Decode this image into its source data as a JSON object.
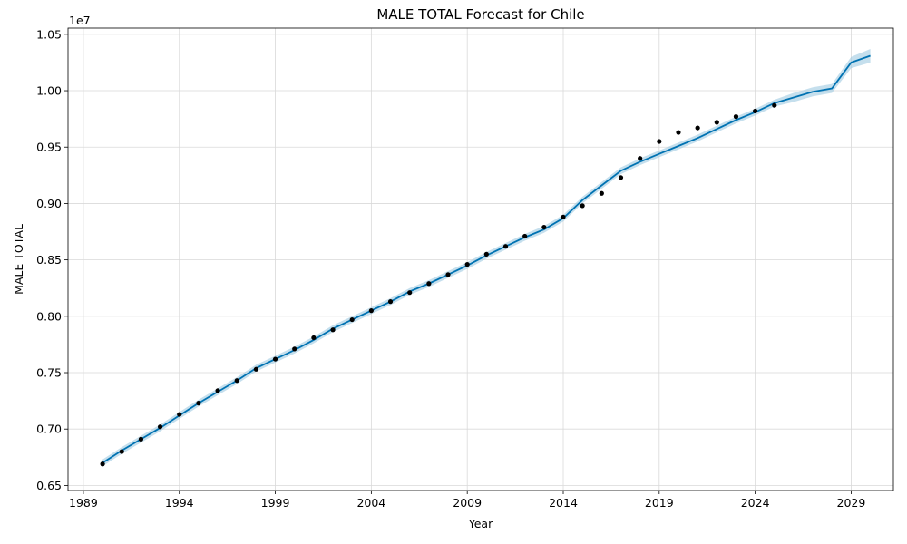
{
  "chart_data": {
    "type": "line",
    "title": "MALE TOTAL Forecast for Chile",
    "xlabel": "Year",
    "ylabel": "MALE TOTAL",
    "y_offset_label": "1e7",
    "y_scale": 10000000,
    "xlim": [
      1988.2,
      2031.2
    ],
    "ylim": [
      6.455,
      10.555
    ],
    "x_ticks": [
      1989,
      1994,
      1999,
      2004,
      2009,
      2014,
      2019,
      2024,
      2029
    ],
    "y_ticks": [
      0.65,
      0.7,
      0.75,
      0.8,
      0.85,
      0.9,
      0.95,
      1.0,
      1.05
    ],
    "y_tick_labels": [
      "0.65",
      "0.70",
      "0.75",
      "0.80",
      "0.85",
      "0.90",
      "0.95",
      "1.00",
      "1.05"
    ],
    "grid": true,
    "line_color": "#0072B2",
    "band_color": "#9ecae1",
    "point_color": "#000000",
    "series": [
      {
        "kind": "observed",
        "x": [
          1990,
          1991,
          1992,
          1993,
          1994,
          1995,
          1996,
          1997,
          1998,
          1999,
          2000,
          2001,
          2002,
          2003,
          2004,
          2005,
          2006,
          2007,
          2008,
          2009,
          2010,
          2011,
          2012,
          2013,
          2014,
          2015,
          2016,
          2017,
          2018,
          2019,
          2020,
          2021,
          2022,
          2023,
          2024,
          2025
        ],
        "y": [
          6.69,
          6.8,
          6.91,
          7.02,
          7.13,
          7.23,
          7.34,
          7.43,
          7.53,
          7.62,
          7.71,
          7.81,
          7.88,
          7.97,
          8.05,
          8.13,
          8.21,
          8.29,
          8.37,
          8.46,
          8.55,
          8.62,
          8.71,
          8.79,
          8.88,
          8.98,
          9.09,
          9.23,
          9.4,
          9.55,
          9.63,
          9.67,
          9.72,
          9.77,
          9.82,
          9.87
        ]
      },
      {
        "kind": "forecast",
        "x": [
          1990,
          1991,
          1992,
          1993,
          1994,
          1995,
          1996,
          1997,
          1998,
          1999,
          2000,
          2001,
          2002,
          2003,
          2004,
          2005,
          2006,
          2007,
          2008,
          2009,
          2010,
          2011,
          2012,
          2013,
          2014,
          2015,
          2016,
          2017,
          2018,
          2019,
          2020,
          2021,
          2022,
          2023,
          2024,
          2025,
          2026,
          2027,
          2028,
          2029,
          2030
        ],
        "y": [
          6.7,
          6.81,
          6.91,
          7.01,
          7.12,
          7.23,
          7.33,
          7.43,
          7.54,
          7.62,
          7.7,
          7.79,
          7.89,
          7.97,
          8.05,
          8.13,
          8.22,
          8.29,
          8.37,
          8.45,
          8.54,
          8.62,
          8.7,
          8.77,
          8.87,
          9.03,
          9.16,
          9.29,
          9.37,
          9.44,
          9.51,
          9.58,
          9.66,
          9.74,
          9.81,
          9.89,
          9.94,
          9.99,
          10.02,
          10.25,
          10.31
        ],
        "lower": [
          6.67,
          6.78,
          6.88,
          6.98,
          7.09,
          7.2,
          7.3,
          7.4,
          7.51,
          7.59,
          7.67,
          7.76,
          7.86,
          7.94,
          8.02,
          8.1,
          8.19,
          8.26,
          8.34,
          8.42,
          8.51,
          8.59,
          8.67,
          8.74,
          8.84,
          9.0,
          9.13,
          9.26,
          9.34,
          9.41,
          9.48,
          9.55,
          9.63,
          9.71,
          9.78,
          9.86,
          9.9,
          9.95,
          9.98,
          10.2,
          10.25
        ],
        "upper": [
          6.73,
          6.84,
          6.94,
          7.04,
          7.15,
          7.26,
          7.36,
          7.46,
          7.57,
          7.65,
          7.73,
          7.82,
          7.92,
          8.0,
          8.08,
          8.16,
          8.25,
          8.32,
          8.4,
          8.48,
          8.57,
          8.65,
          8.73,
          8.8,
          8.9,
          9.06,
          9.19,
          9.32,
          9.4,
          9.47,
          9.54,
          9.61,
          9.69,
          9.77,
          9.84,
          9.92,
          9.98,
          10.03,
          10.06,
          10.3,
          10.37
        ]
      }
    ]
  }
}
